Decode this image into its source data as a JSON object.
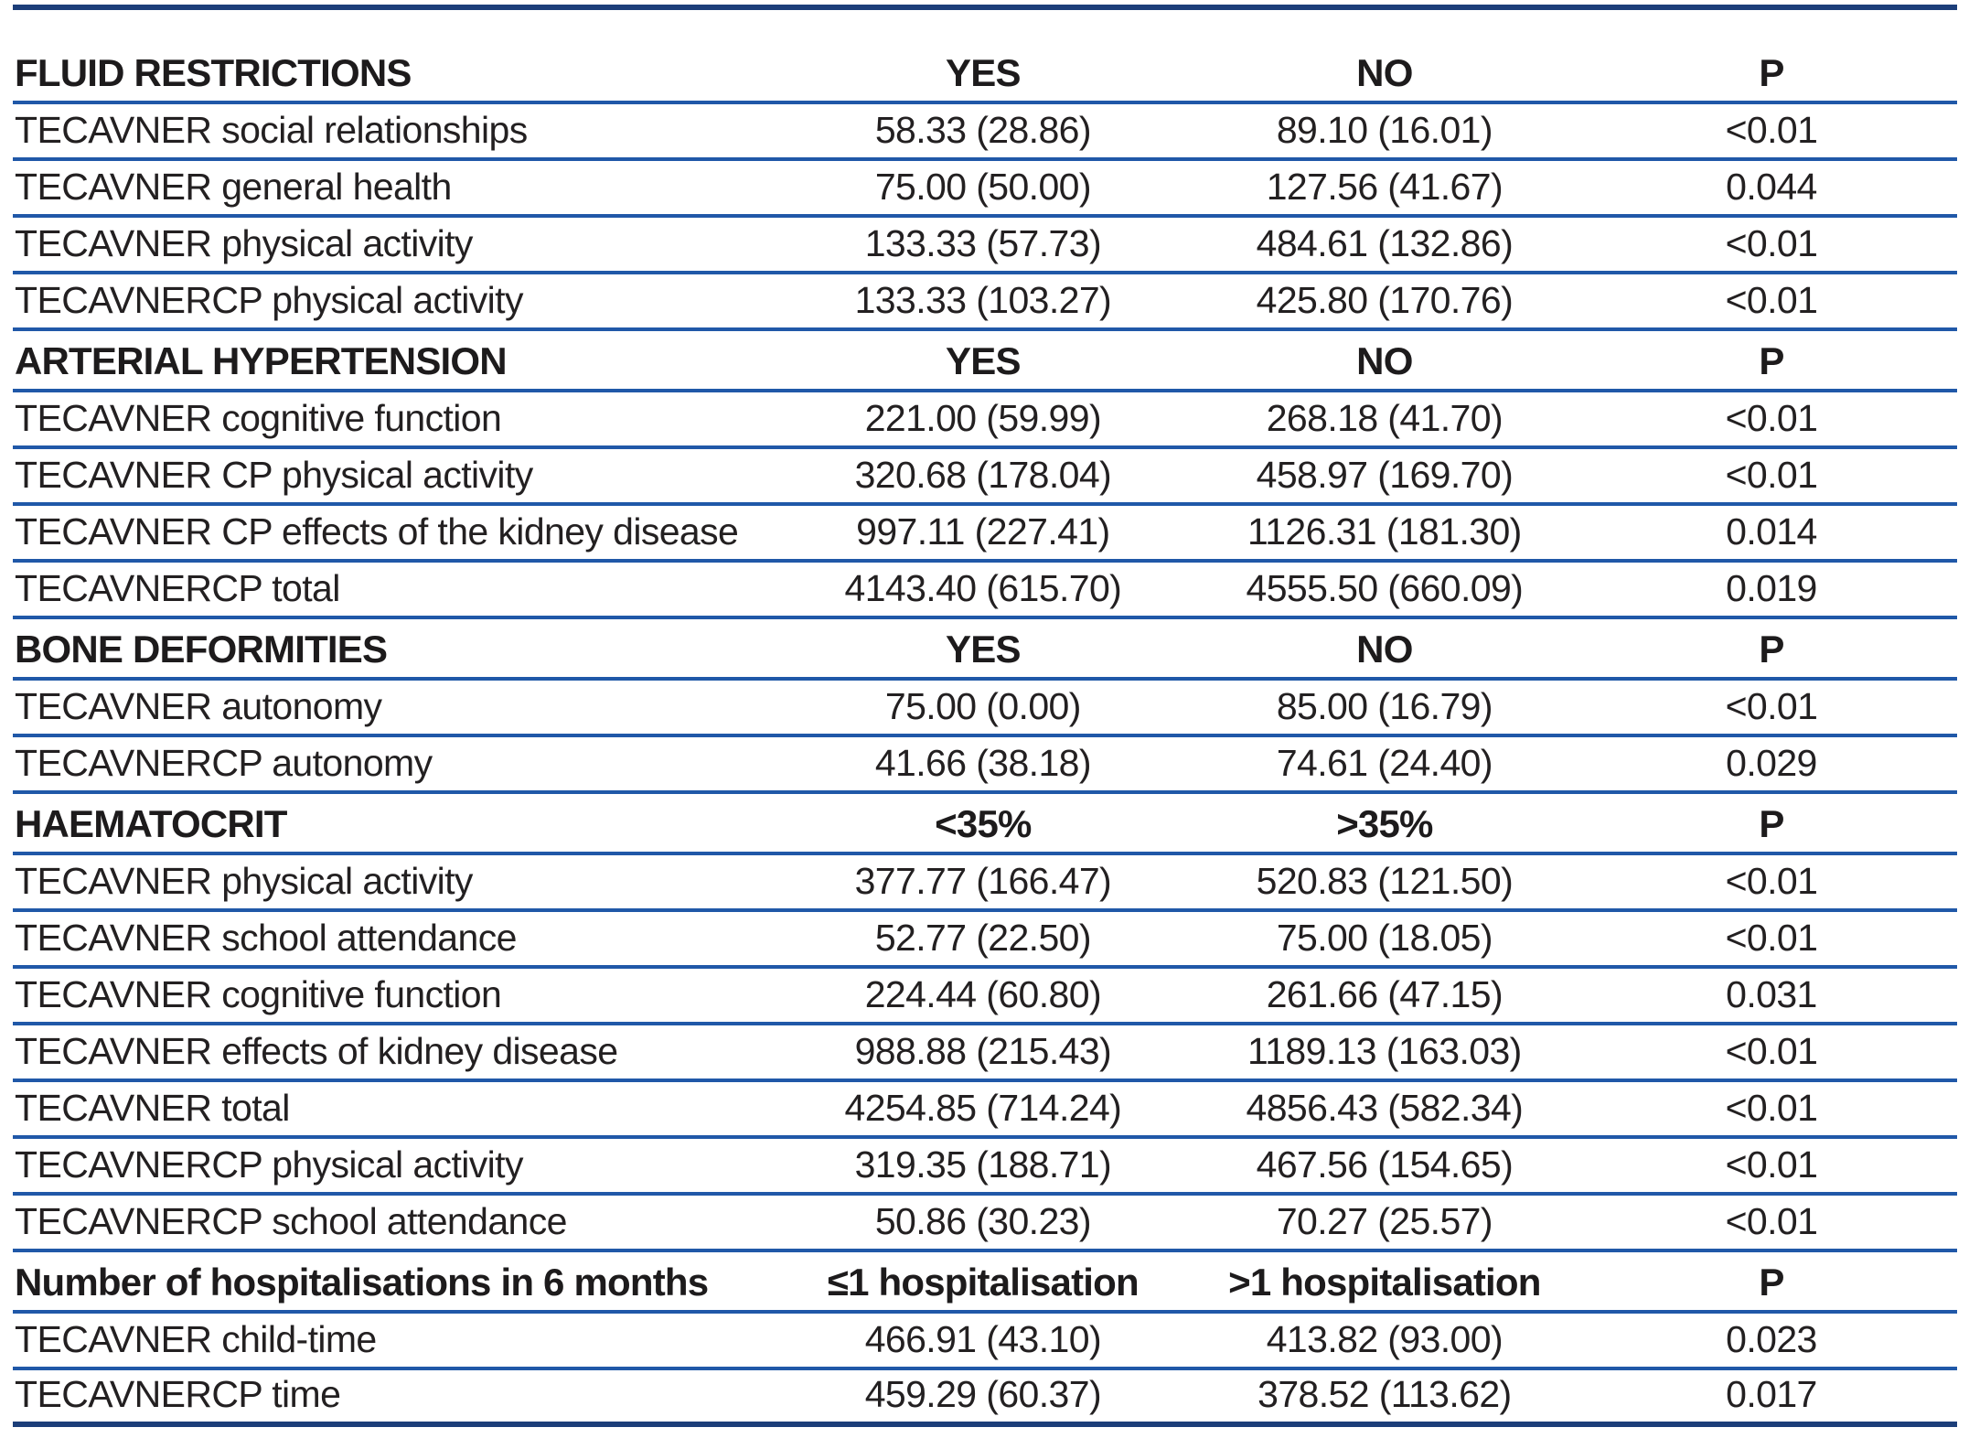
{
  "page": {
    "background": "#ffffff"
  },
  "table": {
    "colors": {
      "frame_line": "#1c3e79",
      "separator_line": "#2058a8",
      "text": "#232021"
    },
    "sections": [
      {
        "title": "FLUID RESTRICTIONS",
        "columns": [
          "YES",
          "NO",
          "P"
        ],
        "rows": [
          {
            "label": "TECAVNER social relationships",
            "values": [
              "58.33 (28.86)",
              "89.10 (16.01)",
              "<0.01"
            ]
          },
          {
            "label": "TECAVNER general health",
            "values": [
              "75.00 (50.00)",
              "127.56 (41.67)",
              "0.044"
            ]
          },
          {
            "label": "TECAVNER physical activity",
            "values": [
              "133.33 (57.73)",
              "484.61 (132.86)",
              "<0.01"
            ]
          },
          {
            "label": "TECAVNERCP physical activity",
            "values": [
              "133.33 (103.27)",
              "425.80 (170.76)",
              "<0.01"
            ]
          }
        ]
      },
      {
        "title": "ARTERIAL HYPERTENSION",
        "columns": [
          "YES",
          "NO",
          "P"
        ],
        "rows": [
          {
            "label": "TECAVNER cognitive function",
            "values": [
              "221.00 (59.99)",
              "268.18 (41.70)",
              "<0.01"
            ]
          },
          {
            "label": "TECAVNER CP physical activity",
            "values": [
              "320.68 (178.04)",
              "458.97 (169.70)",
              "<0.01"
            ]
          },
          {
            "label": "TECAVNER CP effects of the kidney disease",
            "values": [
              "997.11 (227.41)",
              "1126.31 (181.30)",
              "0.014"
            ]
          },
          {
            "label": "TECAVNERCP total",
            "values": [
              "4143.40 (615.70)",
              "4555.50 (660.09)",
              "0.019"
            ]
          }
        ]
      },
      {
        "title": "BONE DEFORMITIES",
        "columns": [
          "YES",
          "NO",
          "P"
        ],
        "rows": [
          {
            "label": "TECAVNER autonomy",
            "values": [
              "75.00 (0.00)",
              "85.00 (16.79)",
              "<0.01"
            ]
          },
          {
            "label": "TECAVNERCP autonomy",
            "values": [
              "41.66 (38.18)",
              "74.61 (24.40)",
              "0.029"
            ]
          }
        ]
      },
      {
        "title": "HAEMATOCRIT",
        "columns": [
          "<35%",
          ">35%",
          "P"
        ],
        "rows": [
          {
            "label": "TECAVNER physical activity",
            "values": [
              "377.77 (166.47)",
              "520.83 (121.50)",
              "<0.01"
            ]
          },
          {
            "label": "TECAVNER school attendance",
            "values": [
              "52.77 (22.50)",
              "75.00 (18.05)",
              "<0.01"
            ]
          },
          {
            "label": "TECAVNER cognitive function",
            "values": [
              "224.44 (60.80)",
              "261.66 (47.15)",
              "0.031"
            ]
          },
          {
            "label": "TECAVNER effects of kidney disease",
            "values": [
              "988.88 (215.43)",
              "1189.13 (163.03)",
              "<0.01"
            ]
          },
          {
            "label": "TECAVNER total",
            "values": [
              "4254.85 (714.24)",
              "4856.43 (582.34)",
              "<0.01"
            ]
          },
          {
            "label": "TECAVNERCP physical activity",
            "values": [
              "319.35 (188.71)",
              "467.56 (154.65)",
              "<0.01"
            ]
          },
          {
            "label": "TECAVNERCP school attendance",
            "values": [
              "50.86 (30.23)",
              "70.27 (25.57)",
              "<0.01"
            ]
          }
        ]
      },
      {
        "title": "Number of hospitalisations in 6 months",
        "columns": [
          "≤1 hospitalisation",
          ">1 hospitalisation",
          "P"
        ],
        "rows": [
          {
            "label": "TECAVNER child-time",
            "values": [
              "466.91 (43.10)",
              "413.82 (93.00)",
              "0.023"
            ]
          },
          {
            "label": "TECAVNERCP time",
            "values": [
              "459.29 (60.37)",
              "378.52 (113.62)",
              "0.017"
            ]
          }
        ]
      }
    ]
  }
}
